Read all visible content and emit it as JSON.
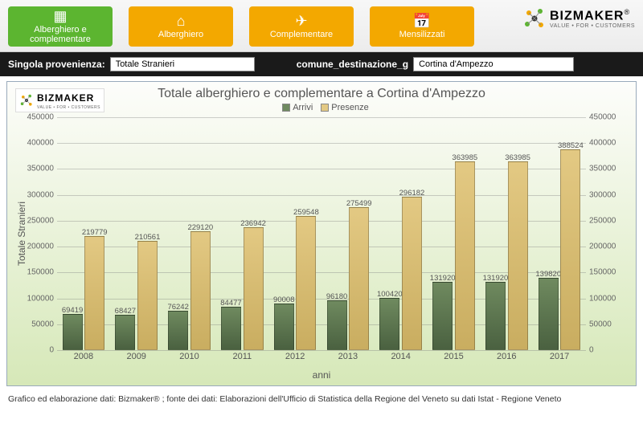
{
  "nav": {
    "items": [
      {
        "label": "Alberghiero e complementare",
        "icon": "▦",
        "bg": "#5cb530"
      },
      {
        "label": "Alberghiero",
        "icon": "⌂",
        "bg": "#f3a800"
      },
      {
        "label": "Complementare",
        "icon": "✈",
        "bg": "#f3a800"
      },
      {
        "label": "Mensilizzati",
        "icon": "📅",
        "bg": "#f3a800"
      }
    ]
  },
  "brand": {
    "name": "BIZMAKER",
    "tagline": "VALUE • FOR • CUSTOMERS",
    "reg": "®"
  },
  "filters": {
    "prov_label": "Singola provenienza:",
    "prov_value": "Totale Stranieri",
    "dest_label": "comune_destinazione_g",
    "dest_value": "Cortina d'Ampezzo"
  },
  "chart": {
    "type": "bar",
    "title": "Totale alberghiero e complementare a Cortina d'Ampezzo",
    "y_axis_title": "Totale Stranieri",
    "x_axis_title": "anni",
    "legend": [
      {
        "label": "Arrivi",
        "color": "#6f8a5f"
      },
      {
        "label": "Presenze",
        "color": "#e3c983"
      }
    ],
    "ylim": [
      0,
      450000
    ],
    "ytick_step": 50000,
    "categories": [
      "2008",
      "2009",
      "2010",
      "2011",
      "2012",
      "2013",
      "2014",
      "2015",
      "2016",
      "2017"
    ],
    "series": {
      "arrivi": [
        69419,
        68427,
        76242,
        84477,
        90008,
        96180,
        100420,
        131920,
        131920,
        139820
      ],
      "presenze": [
        219779,
        210561,
        229120,
        236942,
        259548,
        275499,
        296182,
        363985,
        363985,
        388524
      ]
    },
    "colors": {
      "arrivi": "#6f8a5f",
      "presenze": "#e3c983"
    },
    "grid_color": "rgba(120,120,120,0.35)",
    "background_gradient": [
      "#fdfdfb",
      "#d6e8b8"
    ],
    "label_fontsize": 11,
    "value_fontsize": 9.5
  },
  "footer": "Grafico ed elaborazione dati: Bizmaker® ; fonte dei dati: Elaborazioni dell'Ufficio di Statistica della Regione del Veneto  su dati Istat - Regione Veneto"
}
